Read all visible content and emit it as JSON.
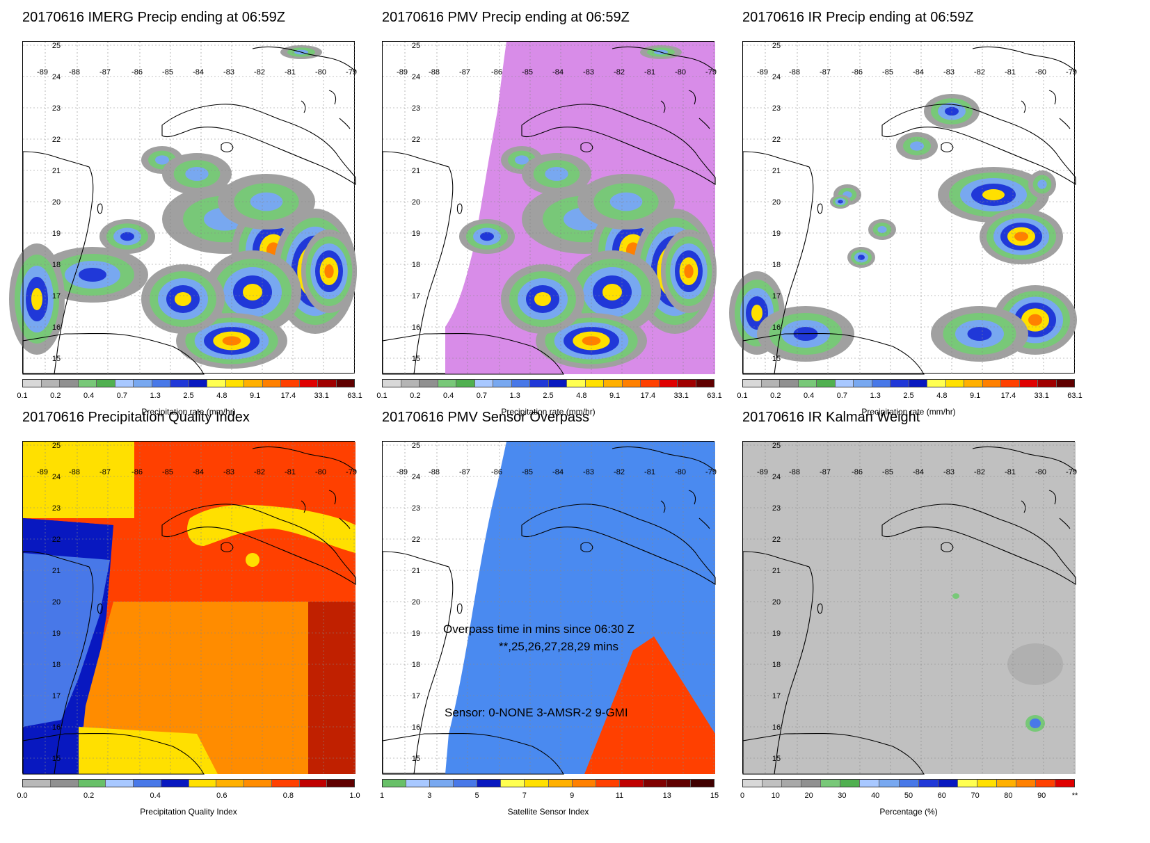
{
  "panels": [
    {
      "title": "20170616 IMERG Precip ending at 06:59Z",
      "colorbar_title": "Precipitation rate (mm/hr)",
      "colorbar_labels": [
        "0.1",
        "0.2",
        "0.4",
        "0.7",
        "1.3",
        "2.5",
        "4.8",
        "9.1",
        "17.4",
        "33.1",
        "63.1"
      ],
      "colorbar_colors": [
        "#d8d8d8",
        "#b4b4b4",
        "#909090",
        "#78c878",
        "#50b050",
        "#a8c8ff",
        "#78a8f0",
        "#4878e8",
        "#2038d8",
        "#0818c0",
        "#ffff50",
        "#ffe000",
        "#ffb000",
        "#ff8000",
        "#ff4000",
        "#e00000",
        "#a00000",
        "#600000"
      ],
      "type": "precip"
    },
    {
      "title": "20170616 PMV Precip ending at 06:59Z",
      "colorbar_title": "Precipitation rate (mm/hr)",
      "colorbar_labels": [
        "0.1",
        "0.2",
        "0.4",
        "0.7",
        "1.3",
        "2.5",
        "4.8",
        "9.1",
        "17.4",
        "33.1",
        "63.1"
      ],
      "colorbar_colors": [
        "#d8d8d8",
        "#b4b4b4",
        "#909090",
        "#78c878",
        "#50b050",
        "#a8c8ff",
        "#78a8f0",
        "#4878e8",
        "#2038d8",
        "#0818c0",
        "#ffff50",
        "#ffe000",
        "#ffb000",
        "#ff8000",
        "#ff4000",
        "#e00000",
        "#a00000",
        "#600000"
      ],
      "type": "pmv"
    },
    {
      "title": "20170616 IR Precip ending at 06:59Z",
      "colorbar_title": "Precipitation rate (mm/hr)",
      "colorbar_labels": [
        "0.1",
        "0.2",
        "0.4",
        "0.7",
        "1.3",
        "2.5",
        "4.8",
        "9.1",
        "17.4",
        "33.1",
        "63.1"
      ],
      "colorbar_colors": [
        "#d8d8d8",
        "#b4b4b4",
        "#909090",
        "#78c878",
        "#50b050",
        "#a8c8ff",
        "#78a8f0",
        "#4878e8",
        "#2038d8",
        "#0818c0",
        "#ffff50",
        "#ffe000",
        "#ffb000",
        "#ff8000",
        "#ff4000",
        "#e00000",
        "#a00000",
        "#600000"
      ],
      "type": "ir"
    },
    {
      "title": "20170616 Precipitation Quality Index",
      "colorbar_title": "Precipitation Quality Index",
      "colorbar_labels": [
        "0.0",
        "0.2",
        "0.4",
        "0.6",
        "0.8",
        "1.0"
      ],
      "colorbar_colors": [
        "#b8b8b8",
        "#909090",
        "#68c068",
        "#a8c8ff",
        "#4878e8",
        "#0818c0",
        "#ffe000",
        "#ffb000",
        "#ff8c00",
        "#ff4000",
        "#c00000",
        "#600000"
      ],
      "type": "pqi"
    },
    {
      "title": "20170616 PMV Sensor Overpass",
      "colorbar_title": "Satellite Sensor Index",
      "colorbar_labels": [
        "1",
        "3",
        "5",
        "7",
        "9",
        "11",
        "13",
        "15"
      ],
      "colorbar_colors": [
        "#68c068",
        "#a8c8ff",
        "#78a8f0",
        "#4878e8",
        "#0818c0",
        "#ffff50",
        "#ffe000",
        "#ffb000",
        "#ff8000",
        "#ff4000",
        "#c00000",
        "#800000",
        "#600000",
        "#400000"
      ],
      "overlay_line1": "Overpass time in mins since 06:30 Z",
      "overlay_line2": "**,25,26,27,28,29 mins",
      "overlay_line3": "Sensor:   0-NONE  3-AMSR-2  9-GMI",
      "type": "overpass"
    },
    {
      "title": "20170616 IR Kalman Weight",
      "colorbar_title": "Percentage (%)",
      "colorbar_labels": [
        "0",
        "10",
        "20",
        "30",
        "40",
        "50",
        "60",
        "70",
        "80",
        "90",
        "**"
      ],
      "colorbar_colors": [
        "#d8d8d8",
        "#c0c0c0",
        "#a8a8a8",
        "#909090",
        "#78c878",
        "#50b050",
        "#a8c8ff",
        "#78a8f0",
        "#4878e8",
        "#2038d8",
        "#0818c0",
        "#ffff50",
        "#ffe000",
        "#ffb000",
        "#ff8000",
        "#ff4000",
        "#e00000"
      ],
      "type": "kalman"
    }
  ],
  "map_axes": {
    "lon_labels": [
      "-89",
      "-88",
      "-87",
      "-86",
      "-85",
      "-84",
      "-83",
      "-82",
      "-81",
      "-80",
      "-79"
    ],
    "lat_labels": [
      "25",
      "24",
      "23",
      "22",
      "21",
      "20",
      "19",
      "18",
      "17",
      "16",
      "15"
    ]
  }
}
